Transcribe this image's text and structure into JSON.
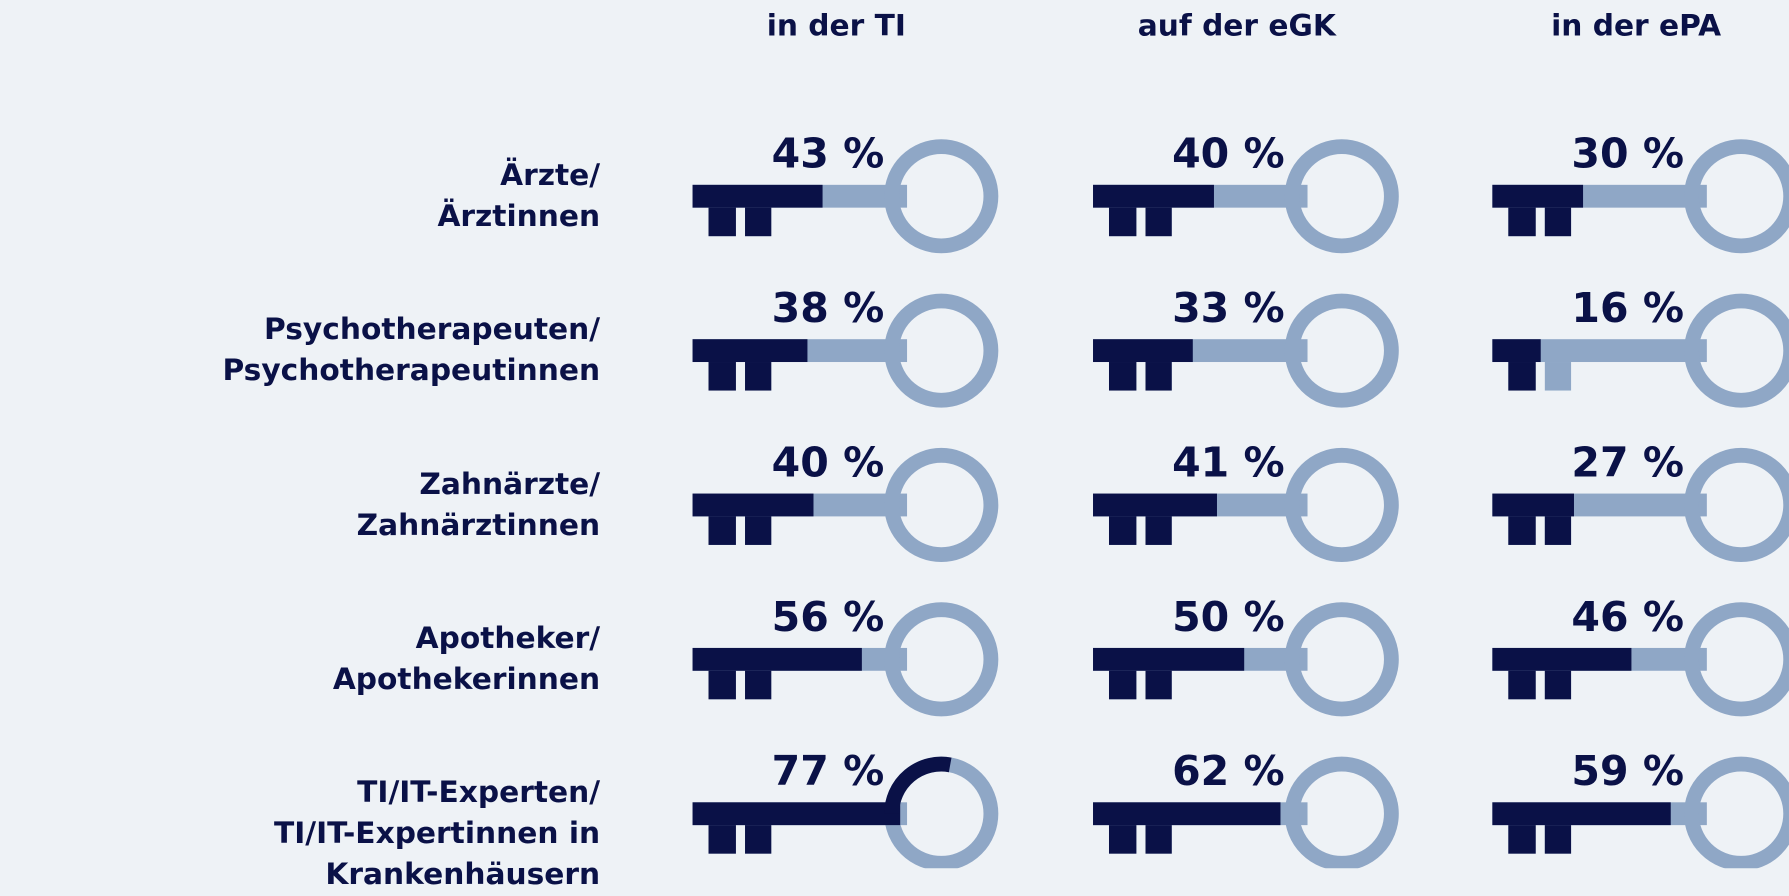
{
  "chart_data": {
    "type": "key",
    "categories": [
      "Ärzte/\nÄrztinnen",
      "Psychotherapeuten/\nPsychotherapeutinnen",
      "Zahnärzte/\nZahnärztinnen",
      "Apotheker/\nApothekerinnen",
      "TI/IT-Experten/\nTI/IT-Expertinnen in Krankenhäusern"
    ],
    "series": [
      {
        "name": "in der TI",
        "color": "#0a1147",
        "values": [
          43,
          38,
          40,
          56,
          77
        ],
        "value_labels": [
          "43 %",
          "38 %",
          "40 %",
          "56 %",
          "77 %"
        ]
      },
      {
        "name": "auf der eGK",
        "color": "#0a1147",
        "values": [
          40,
          33,
          41,
          50,
          62
        ],
        "value_labels": [
          "40 %",
          "33 %",
          "41 %",
          "50 %",
          "62 %"
        ]
      },
      {
        "name": "in der ePA",
        "color": "#0a1147",
        "values": [
          30,
          16,
          27,
          46,
          59
        ],
        "value_labels": [
          "30 %",
          "16 %",
          "27 %",
          "46 %",
          "59 %"
        ]
      }
    ],
    "track_color": "#8fa7c6",
    "ylim": [
      0,
      100
    ]
  }
}
